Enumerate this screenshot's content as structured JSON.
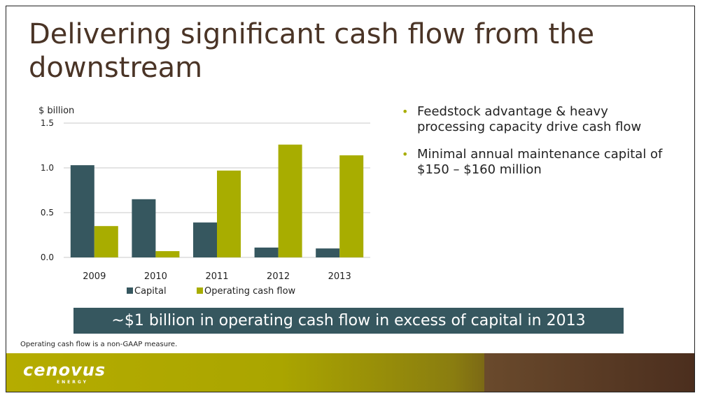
{
  "slide": {
    "title": "Delivering significant cash flow from the downstream",
    "bullets": [
      "Feedstock advantage & heavy processing capacity drive cash flow",
      "Minimal annual maintenance capital of $150 – $160 million"
    ],
    "banner": "~$1 billion in operating cash flow in excess of capital in 2013",
    "footnote": "Operating cash flow is a non-GAAP measure.",
    "logo_text": "cenovus",
    "logo_subtext": "ENERGY"
  },
  "colors": {
    "capital": "#36575f",
    "operating_cash_flow": "#a8ad00",
    "title": "#4a3426",
    "banner": "#36575f"
  },
  "chart_data": {
    "type": "bar",
    "title": "",
    "xlabel": "",
    "ylabel": "$ billion",
    "categories": [
      "2009",
      "2010",
      "2011",
      "2012",
      "2013"
    ],
    "series": [
      {
        "name": "Capital",
        "values": [
          1.03,
          0.65,
          0.39,
          0.11,
          0.1
        ]
      },
      {
        "name": "Operating cash flow",
        "values": [
          0.35,
          0.07,
          0.97,
          1.26,
          1.14
        ]
      }
    ],
    "ylim": [
      0,
      1.5
    ],
    "yticks": [
      "0.0",
      "0.5",
      "1.0",
      "1.5"
    ],
    "grid": true,
    "legend": "bottom"
  }
}
